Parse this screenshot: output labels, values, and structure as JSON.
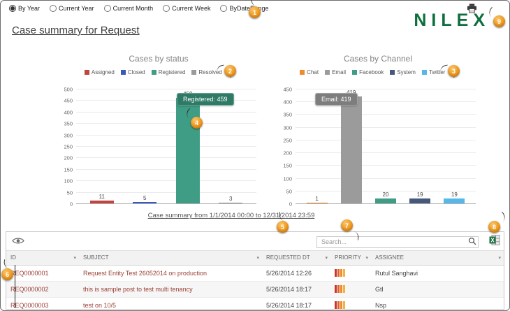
{
  "header": {
    "filters": [
      {
        "label": "By Year",
        "selected": true
      },
      {
        "label": "Current Year",
        "selected": false
      },
      {
        "label": "Current Month",
        "selected": false
      },
      {
        "label": "Current Week",
        "selected": false
      },
      {
        "label": "ByDateRange",
        "selected": false
      }
    ],
    "logo_text": "NILEX"
  },
  "page_title": "Case summary for Request",
  "chart_data": [
    {
      "type": "bar",
      "title": "Cases by status",
      "categories": [
        "Assigned",
        "Closed",
        "Registered",
        "Resolved"
      ],
      "values": [
        11,
        5,
        459,
        3
      ],
      "colors": [
        "#c0453e",
        "#3a58c0",
        "#3f9d85",
        "#9a9a9a"
      ],
      "ylim": [
        0,
        500
      ],
      "ytick_step": 50,
      "grid": true,
      "legend_position": "top",
      "tooltip": "Registered: 459"
    },
    {
      "type": "bar",
      "title": "Cases by Channel",
      "categories": [
        "Chat",
        "Email",
        "Facebook",
        "System",
        "Twitter"
      ],
      "values": [
        1,
        419,
        20,
        19,
        19
      ],
      "colors": [
        "#ef8b2f",
        "#9b9b9b",
        "#3f9d85",
        "#44597c",
        "#55b8e8"
      ],
      "ylim": [
        0,
        450
      ],
      "ytick_step": 50,
      "grid": true,
      "legend_position": "top",
      "tooltip": "Email: 419"
    }
  ],
  "summary_caption": "Case summary from 1/1/2014 00:00 to 12/31/2014 23:59",
  "grid": {
    "search_placeholder": "Search...",
    "columns": [
      "ID",
      "SUBJECT",
      "REQUESTED DT",
      "PRIORITY",
      "ASSIGNEE"
    ],
    "rows": [
      {
        "id": "REQ0000001",
        "subject": "Request Entity Test 26052014 on production",
        "requested_dt": "5/26/2014 12:26",
        "priority_icon": "priority-bars",
        "assignee": "Rutul Sanghavi"
      },
      {
        "id": "REQ0000002",
        "subject": "this is sample post to test multi tenancy",
        "requested_dt": "5/26/2014 18:17",
        "priority_icon": "priority-bars",
        "assignee": "Gtl"
      },
      {
        "id": "REQ0000003",
        "subject": "test on 10/5",
        "requested_dt": "5/26/2014 18:17",
        "priority_icon": "priority-bars",
        "assignee": "Nsp"
      }
    ]
  },
  "callouts": [
    "1",
    "2",
    "3",
    "4",
    "5",
    "6",
    "7",
    "8",
    "9"
  ],
  "annotation_brace": "}",
  "colors": {
    "brand_green": "#0e6f3d",
    "callout_orange": "#ef9012",
    "tooltip_status_bg": "#2e7a66",
    "tooltip_channel_bg": "#7d7d7d"
  }
}
